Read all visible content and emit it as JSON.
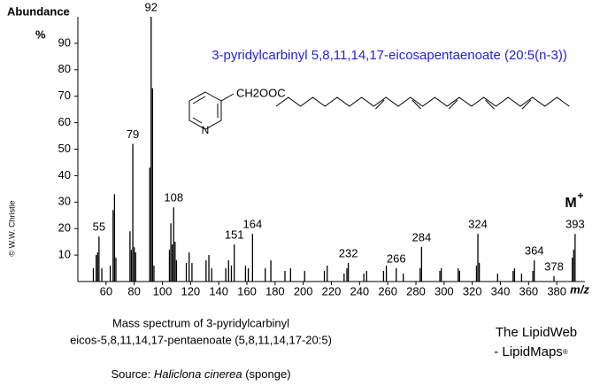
{
  "chart_data": {
    "type": "stick",
    "title": "3-pyridylcarbinyl 5,8,11,14,17-eicosapentaenoate (20:5(n-3))",
    "title_color": "#1f1fe6",
    "y_label": "Abundance",
    "y_unit": "%",
    "x_label": "m/z",
    "color": "#000000",
    "xlim": [
      40,
      400
    ],
    "xticks": [
      60,
      80,
      100,
      120,
      140,
      160,
      180,
      200,
      220,
      240,
      260,
      280,
      300,
      320,
      340,
      360,
      380
    ],
    "ylim": [
      0,
      100
    ],
    "yticks": [
      10,
      20,
      30,
      40,
      50,
      60,
      70,
      80,
      90
    ],
    "x": [
      51,
      53,
      54,
      55,
      57,
      63,
      65,
      66,
      67,
      77,
      78,
      79,
      80,
      81,
      91,
      92,
      93,
      94,
      105,
      106,
      107,
      108,
      109,
      110,
      117,
      119,
      121,
      131,
      133,
      135,
      145,
      147,
      149,
      151,
      159,
      161,
      164,
      173,
      177,
      187,
      191,
      201,
      215,
      217,
      229,
      231,
      232,
      243,
      245,
      257,
      259,
      266,
      271,
      283,
      284,
      297,
      298,
      310,
      311,
      323,
      324,
      325,
      338,
      349,
      350,
      355,
      363,
      364,
      378,
      391,
      392,
      393
    ],
    "values": [
      5,
      10,
      11,
      17,
      5,
      6,
      27,
      33,
      9,
      19,
      12,
      52,
      13,
      11,
      43,
      100,
      73,
      6,
      12,
      22,
      14,
      28,
      15,
      8,
      7,
      11,
      7,
      8,
      10,
      5,
      5,
      8,
      6,
      14,
      6,
      5,
      18,
      5,
      8,
      4,
      5,
      4,
      4,
      6,
      3,
      5,
      7,
      3,
      4,
      4,
      6,
      5,
      3,
      5,
      13,
      4,
      5,
      5,
      4,
      6,
      18,
      7,
      3,
      4,
      5,
      3,
      4,
      8,
      2,
      9,
      12,
      18
    ],
    "annotations": [
      55,
      79,
      92,
      108,
      151,
      164,
      232,
      266,
      284,
      324,
      364,
      378,
      393
    ],
    "molecular_ion": {
      "label": "M",
      "charge": "+"
    },
    "structure": {
      "substituent": "CH2OOC",
      "atom": "N"
    },
    "copyright": "© W.W. Christie",
    "caption": [
      "Mass spectrum of 3-pyridylcarbinyl",
      "eicos-5,8,11,14,17-pentaenoate (5,8,11,14,17-20:5)"
    ],
    "source": {
      "prefix": "Source: ",
      "species": "Haliclona cinerea",
      "suffix": " (sponge)"
    },
    "credit": {
      "line1": "The LipidWeb",
      "line2": "- LipidMaps",
      "mark": "®"
    }
  }
}
